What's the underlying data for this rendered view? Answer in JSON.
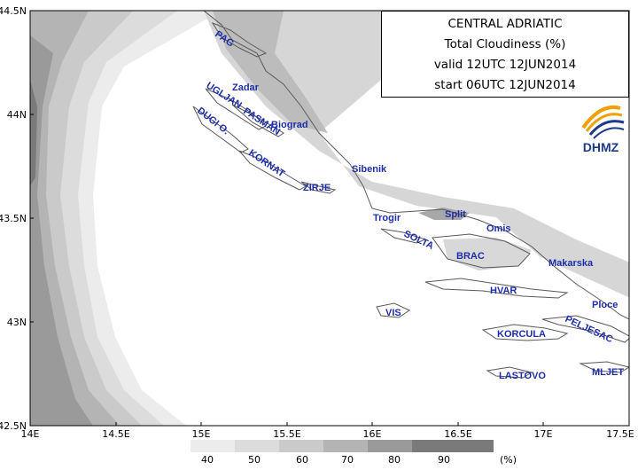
{
  "title": {
    "line1": "CENTRAL ADRIATIC",
    "line2": "Total Cloudiness (%)",
    "line3": "valid 12UTC 12JUN2014",
    "line4": "start 06UTC 12JUN2014"
  },
  "logo": {
    "text": "DHMZ",
    "icon": "dhmz-swirl-logo",
    "colors": [
      "#f0a000",
      "#1d3a8a"
    ]
  },
  "axes": {
    "y_ticks": [
      "44.5N",
      "44N",
      "43.5N",
      "43N",
      "42.5N"
    ],
    "x_ticks": [
      "14E",
      "14.5E",
      "15E",
      "15.5E",
      "16E",
      "16.5E",
      "17E",
      "17.5E"
    ],
    "lon_range": [
      14,
      17.5
    ],
    "lat_range": [
      42.5,
      44.5
    ]
  },
  "places": [
    "PAG",
    "Zadar",
    "UGLJAN",
    "PASMAN",
    "Biograd",
    "DUGI O.",
    "KORNAT",
    "Sibenik",
    "ZIRJE",
    "Trogir",
    "Split",
    "Omis",
    "SOLTA",
    "BRAC",
    "Makarska",
    "HVAR",
    "VIS",
    "Ploce",
    "KORCULA",
    "PELJESAC",
    "LASTOVO",
    "MLJET"
  ],
  "legend": {
    "levels": [
      "40",
      "50",
      "60",
      "70",
      "80",
      "90"
    ],
    "unit": "(%)",
    "colors": [
      "#ececec",
      "#dcdcdc",
      "#cacaca",
      "#b4b4b4",
      "#9a9a9a",
      "#7a7a7a"
    ]
  }
}
